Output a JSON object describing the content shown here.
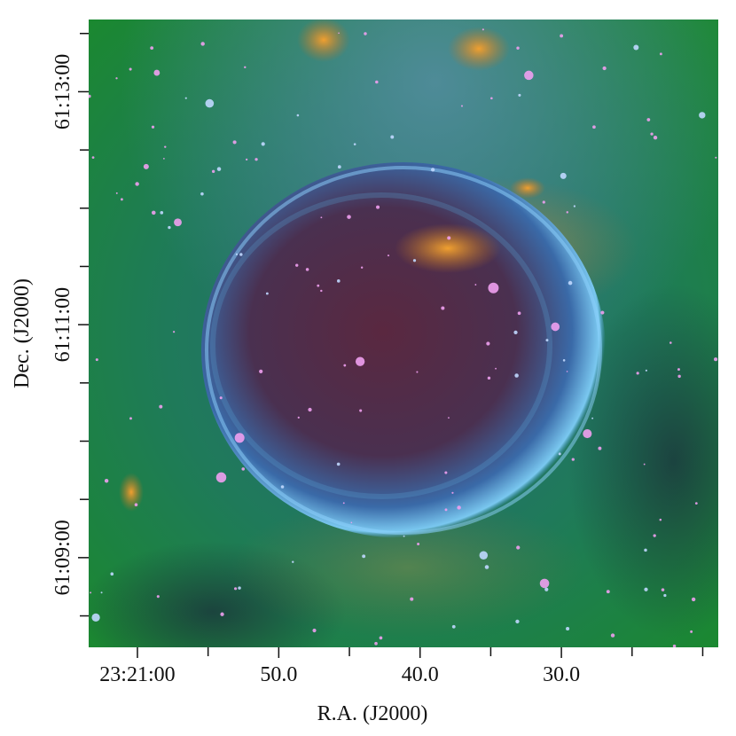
{
  "chart_data": {
    "type": "image",
    "x_label": "R.A. (J2000)",
    "y_label": "Dec. (J2000)",
    "xlim": [
      63.45,
      18.9
    ],
    "xticks": [
      {
        "value": 60,
        "label": "23:21:00"
      },
      {
        "value": 50,
        "label": "50.0"
      },
      {
        "value": 40,
        "label": "40.0"
      },
      {
        "value": 30,
        "label": "30.0"
      }
    ],
    "xminor_ticks": [
      55,
      45,
      35,
      25,
      20
    ],
    "ylim": [
      8.23,
      13.62
    ],
    "yticks": [
      {
        "value": 13,
        "label": "61:13:00"
      },
      {
        "value": 11,
        "label": "61:11:00"
      },
      {
        "value": 9,
        "label": "61:09:00"
      }
    ],
    "yminor_ticks": [
      13.5,
      12.5,
      12,
      11.5,
      10.5,
      10,
      9.5,
      8.5
    ]
  }
}
